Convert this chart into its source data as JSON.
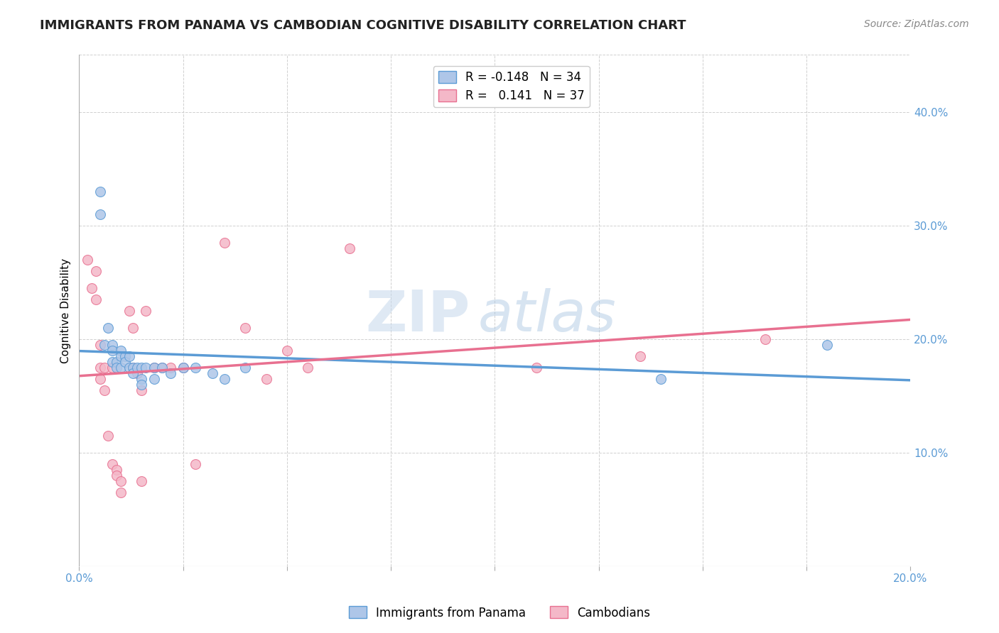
{
  "title": "IMMIGRANTS FROM PANAMA VS CAMBODIAN COGNITIVE DISABILITY CORRELATION CHART",
  "source": "Source: ZipAtlas.com",
  "ylabel": "Cognitive Disability",
  "right_yticks": [
    "40.0%",
    "30.0%",
    "20.0%",
    "10.0%"
  ],
  "right_ytick_vals": [
    0.4,
    0.3,
    0.2,
    0.1
  ],
  "xlim": [
    0.0,
    0.2
  ],
  "ylim": [
    0.0,
    0.45
  ],
  "xtick_vals": [
    0.0,
    0.025,
    0.05,
    0.075,
    0.1,
    0.125,
    0.15,
    0.175,
    0.2
  ],
  "legend_blue_r": "-0.148",
  "legend_blue_n": "34",
  "legend_pink_r": "0.141",
  "legend_pink_n": "37",
  "blue_color": "#aec6e8",
  "pink_color": "#f4b8c8",
  "blue_line_color": "#5b9bd5",
  "pink_line_color": "#e87090",
  "title_color": "#222222",
  "source_color": "#888888",
  "grid_color": "#d0d0d0",
  "blue_points_x": [
    0.005,
    0.005,
    0.006,
    0.007,
    0.008,
    0.008,
    0.008,
    0.009,
    0.009,
    0.01,
    0.01,
    0.01,
    0.011,
    0.011,
    0.012,
    0.012,
    0.013,
    0.013,
    0.014,
    0.015,
    0.015,
    0.015,
    0.016,
    0.018,
    0.018,
    0.02,
    0.022,
    0.025,
    0.028,
    0.032,
    0.035,
    0.04,
    0.14,
    0.18
  ],
  "blue_points_y": [
    0.33,
    0.31,
    0.195,
    0.21,
    0.195,
    0.19,
    0.18,
    0.18,
    0.175,
    0.19,
    0.185,
    0.175,
    0.185,
    0.18,
    0.185,
    0.175,
    0.175,
    0.17,
    0.175,
    0.175,
    0.165,
    0.16,
    0.175,
    0.175,
    0.165,
    0.175,
    0.17,
    0.175,
    0.175,
    0.17,
    0.165,
    0.175,
    0.165,
    0.195
  ],
  "pink_points_x": [
    0.002,
    0.003,
    0.004,
    0.004,
    0.005,
    0.005,
    0.005,
    0.006,
    0.006,
    0.007,
    0.008,
    0.008,
    0.009,
    0.009,
    0.01,
    0.01,
    0.012,
    0.013,
    0.013,
    0.014,
    0.015,
    0.015,
    0.016,
    0.018,
    0.02,
    0.022,
    0.025,
    0.028,
    0.035,
    0.04,
    0.045,
    0.05,
    0.055,
    0.065,
    0.11,
    0.135,
    0.165
  ],
  "pink_points_y": [
    0.27,
    0.245,
    0.235,
    0.26,
    0.195,
    0.175,
    0.165,
    0.175,
    0.155,
    0.115,
    0.175,
    0.09,
    0.085,
    0.08,
    0.075,
    0.065,
    0.225,
    0.21,
    0.175,
    0.17,
    0.155,
    0.075,
    0.225,
    0.175,
    0.175,
    0.175,
    0.175,
    0.09,
    0.285,
    0.21,
    0.165,
    0.19,
    0.175,
    0.28,
    0.175,
    0.185,
    0.2
  ],
  "watermark_zip": "ZIP",
  "watermark_atlas": "atlas",
  "legend_label_blue": "Immigrants from Panama",
  "legend_label_pink": "Cambodians",
  "marker_size": 100
}
